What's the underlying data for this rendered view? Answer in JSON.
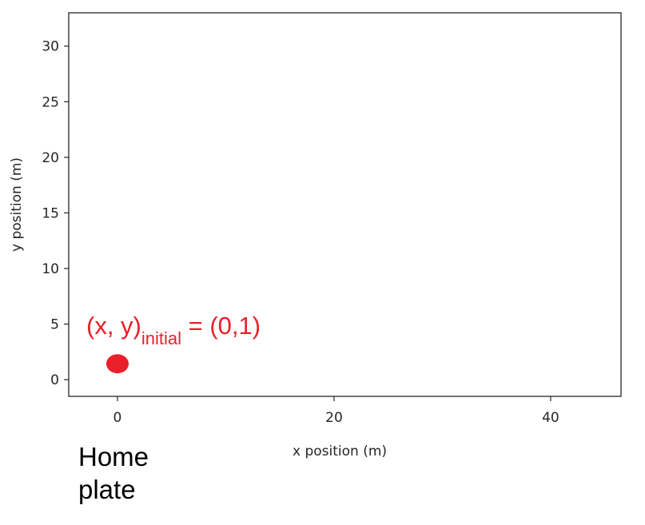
{
  "chart_data": {
    "type": "scatter",
    "title": "",
    "xlabel": "x position (m)",
    "ylabel": "y position (m)",
    "xlim": [
      -4.5,
      46.5
    ],
    "ylim": [
      -1.5,
      33
    ],
    "xticks": [
      0,
      20,
      40
    ],
    "yticks": [
      0,
      5,
      10,
      15,
      20,
      25,
      30
    ],
    "grid": false,
    "series": [
      {
        "x": [
          0
        ],
        "y": [
          1
        ],
        "color": "#e8202a",
        "marker": "filled-circle"
      }
    ],
    "annotation": {
      "prefix": "(x, y)",
      "subscript": "initial",
      "suffix": " = (0,1)",
      "color": "#e8202a"
    }
  },
  "outside_label": {
    "line1": "Home",
    "line2": "plate"
  }
}
